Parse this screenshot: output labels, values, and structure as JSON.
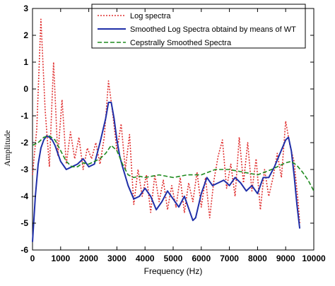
{
  "chart_data": {
    "type": "line",
    "title": "",
    "xlabel": "Frequency (Hz)",
    "ylabel": "Amplitude",
    "xlim": [
      0,
      10000
    ],
    "ylim": [
      -6,
      3
    ],
    "xticks": [
      0,
      1000,
      2000,
      3000,
      4000,
      5000,
      6000,
      7000,
      8000,
      9000,
      10000
    ],
    "yticks": [
      -6,
      -5,
      -4,
      -3,
      -2,
      -1,
      0,
      1,
      2,
      3
    ],
    "grid": false,
    "legend_position": "top-right",
    "series": [
      {
        "name": "Log spectra",
        "color": "#e03030",
        "style": "dotted",
        "x": [
          0,
          150,
          300,
          450,
          600,
          750,
          900,
          1050,
          1200,
          1350,
          1500,
          1650,
          1800,
          1950,
          2100,
          2250,
          2400,
          2550,
          2700,
          2850,
          3000,
          3150,
          3300,
          3450,
          3600,
          3750,
          3900,
          4050,
          4200,
          4350,
          4500,
          4650,
          4800,
          4950,
          5100,
          5250,
          5400,
          5550,
          5700,
          5850,
          6000,
          6150,
          6300,
          6450,
          6600,
          6750,
          6900,
          7050,
          7200,
          7350,
          7500,
          7650,
          7800,
          7950,
          8100,
          8250,
          8400,
          8550,
          8700,
          8850,
          9000,
          9150,
          9300,
          9450,
          9500
        ],
        "values": [
          -3.2,
          -1.5,
          2.6,
          -0.8,
          -2.9,
          1.0,
          -2.5,
          -0.4,
          -2.8,
          -1.6,
          -2.6,
          -1.8,
          -3.0,
          -2.2,
          -2.6,
          -2.0,
          -2.8,
          -1.8,
          0.3,
          -0.9,
          -2.3,
          -1.3,
          -3.0,
          -1.7,
          -4.3,
          -3.0,
          -4.0,
          -3.2,
          -4.6,
          -3.2,
          -4.2,
          -3.4,
          -4.5,
          -3.6,
          -4.4,
          -3.3,
          -4.6,
          -3.5,
          -4.2,
          -3.1,
          -4.4,
          -3.3,
          -4.8,
          -3.4,
          -2.5,
          -1.9,
          -3.7,
          -2.8,
          -4.0,
          -1.8,
          -3.5,
          -2.0,
          -3.8,
          -2.6,
          -4.5,
          -3.0,
          -4.0,
          -3.3,
          -2.4,
          -3.3,
          -1.2,
          -2.1,
          -2.7,
          -4.3,
          -5.0
        ]
      },
      {
        "name": "Smoothed Log Spectra obtaind by means of WT",
        "color": "#1f2fa8",
        "style": "solid",
        "x": [
          0,
          100,
          200,
          300,
          400,
          500,
          600,
          700,
          800,
          900,
          1000,
          1200,
          1400,
          1600,
          1800,
          2000,
          2200,
          2400,
          2600,
          2700,
          2800,
          2900,
          3000,
          3100,
          3200,
          3400,
          3600,
          3800,
          4000,
          4200,
          4400,
          4600,
          4800,
          5000,
          5200,
          5400,
          5600,
          5700,
          5800,
          6000,
          6200,
          6400,
          6600,
          6800,
          7000,
          7200,
          7400,
          7600,
          7800,
          8000,
          8200,
          8400,
          8600,
          8800,
          9000,
          9100,
          9200,
          9300,
          9400,
          9500
        ],
        "values": [
          -5.7,
          -4.0,
          -2.8,
          -2.2,
          -1.9,
          -1.75,
          -1.8,
          -1.9,
          -2.1,
          -2.4,
          -2.7,
          -3.0,
          -2.9,
          -2.8,
          -2.6,
          -2.9,
          -2.8,
          -2.0,
          -1.1,
          -0.5,
          -0.5,
          -1.1,
          -1.9,
          -2.5,
          -2.9,
          -3.6,
          -4.1,
          -4.0,
          -3.7,
          -4.0,
          -4.5,
          -4.2,
          -3.8,
          -4.1,
          -4.4,
          -4.0,
          -4.6,
          -4.9,
          -4.8,
          -3.9,
          -3.3,
          -3.6,
          -3.5,
          -3.4,
          -3.6,
          -3.3,
          -3.5,
          -3.8,
          -3.6,
          -3.9,
          -3.3,
          -3.3,
          -2.9,
          -2.4,
          -1.9,
          -1.8,
          -2.3,
          -3.2,
          -4.3,
          -5.2
        ]
      },
      {
        "name": "Cepstrally Smoothed Spectra",
        "color": "#1e8a1e",
        "style": "dashed",
        "x": [
          0,
          200,
          400,
          600,
          800,
          1000,
          1200,
          1400,
          1600,
          1800,
          2000,
          2200,
          2400,
          2600,
          2800,
          3000,
          3200,
          3400,
          3600,
          3800,
          4000,
          4500,
          5000,
          5500,
          6000,
          6500,
          7000,
          7500,
          8000,
          8500,
          9000,
          9200,
          9400,
          9600,
          9800,
          10000
        ],
        "values": [
          -2.1,
          -2.0,
          -1.8,
          -1.75,
          -1.9,
          -2.3,
          -2.7,
          -2.9,
          -2.9,
          -2.75,
          -2.8,
          -2.7,
          -2.6,
          -2.4,
          -2.1,
          -2.3,
          -2.8,
          -3.2,
          -3.3,
          -3.25,
          -3.3,
          -3.2,
          -3.3,
          -3.2,
          -3.2,
          -3.0,
          -3.0,
          -3.1,
          -3.2,
          -3.0,
          -2.75,
          -2.7,
          -2.85,
          -3.1,
          -3.4,
          -3.8
        ]
      }
    ]
  }
}
